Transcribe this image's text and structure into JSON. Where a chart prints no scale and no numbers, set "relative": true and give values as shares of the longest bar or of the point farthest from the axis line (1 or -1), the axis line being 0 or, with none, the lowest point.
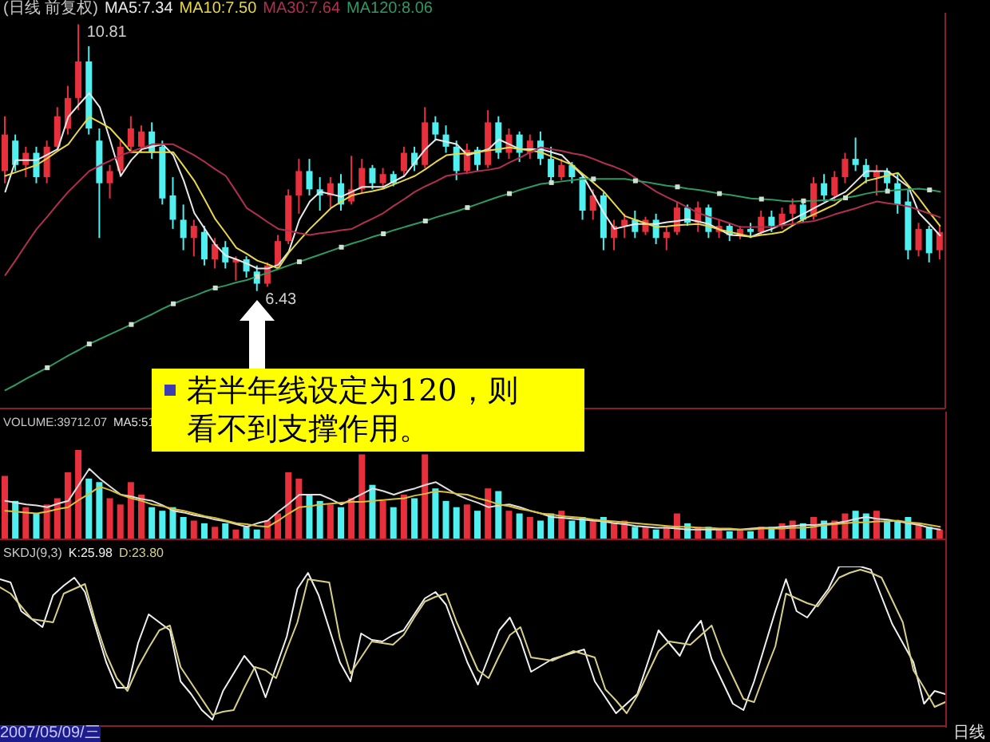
{
  "chart_data": [
    {
      "type": "candlestick",
      "title": "(日线 前复权)",
      "categories": [
        null,
        null,
        null,
        null,
        null,
        null,
        null,
        null,
        null,
        null,
        null,
        null,
        null,
        null,
        null,
        null,
        null,
        null,
        null,
        null,
        null,
        null,
        null,
        null,
        null,
        null,
        null,
        null,
        null,
        null,
        null,
        null,
        null,
        null,
        null,
        null,
        null,
        null,
        null,
        null,
        null,
        null,
        null,
        null,
        null,
        null,
        null,
        null,
        null,
        null,
        null,
        null,
        null,
        null,
        null,
        null,
        null,
        null,
        null,
        null,
        null,
        null,
        null,
        null,
        null,
        null,
        null,
        null,
        null,
        null,
        null,
        null,
        null,
        null,
        null,
        null,
        null,
        null,
        null,
        null,
        null,
        null,
        null,
        null,
        null,
        null,
        null,
        null,
        null,
        null
      ],
      "ylim": [
        4.5,
        11.0
      ],
      "ohlc": [
        [
          8.4,
          9.3,
          8.2,
          9.0
        ],
        [
          8.9,
          9.0,
          8.4,
          8.5
        ],
        [
          8.5,
          8.8,
          8.3,
          8.7
        ],
        [
          8.7,
          8.8,
          8.2,
          8.3
        ],
        [
          8.3,
          8.9,
          8.2,
          8.8
        ],
        [
          8.8,
          9.45,
          8.75,
          9.3
        ],
        [
          9.1,
          9.8,
          9.0,
          9.6
        ],
        [
          9.6,
          10.81,
          9.4,
          10.2
        ],
        [
          10.2,
          10.45,
          9.0,
          9.1
        ],
        [
          8.9,
          9.1,
          7.3,
          8.2
        ],
        [
          8.2,
          8.5,
          7.95,
          8.4
        ],
        [
          8.4,
          8.9,
          8.3,
          8.8
        ],
        [
          8.8,
          9.3,
          8.7,
          9.1
        ],
        [
          8.8,
          9.15,
          8.7,
          9.05
        ],
        [
          9.05,
          9.2,
          8.6,
          8.7
        ],
        [
          8.8,
          8.9,
          7.85,
          7.95
        ],
        [
          8.0,
          8.3,
          7.45,
          7.6
        ],
        [
          7.6,
          7.85,
          7.1,
          7.3
        ],
        [
          7.3,
          7.6,
          7.0,
          7.5
        ],
        [
          7.4,
          7.5,
          6.85,
          6.95
        ],
        [
          6.95,
          7.3,
          6.8,
          7.2
        ],
        [
          7.15,
          7.25,
          6.8,
          6.9
        ],
        [
          6.9,
          7.0,
          6.6,
          6.95
        ],
        [
          6.95,
          7.0,
          6.65,
          6.75
        ],
        [
          6.75,
          6.85,
          6.43,
          6.55
        ],
        [
          6.55,
          6.9,
          6.5,
          6.85
        ],
        [
          6.85,
          7.35,
          6.8,
          7.25
        ],
        [
          7.25,
          8.1,
          7.2,
          8.0
        ],
        [
          8.0,
          8.6,
          7.7,
          8.4
        ],
        [
          8.4,
          8.6,
          8.0,
          8.1
        ],
        [
          8.1,
          8.3,
          7.75,
          8.0
        ],
        [
          8.0,
          8.3,
          7.8,
          8.2
        ],
        [
          8.2,
          8.35,
          7.75,
          7.85
        ],
        [
          7.9,
          8.65,
          7.85,
          8.1
        ],
        [
          8.1,
          8.6,
          8.05,
          8.45
        ],
        [
          8.45,
          8.5,
          8.1,
          8.2
        ],
        [
          8.2,
          8.45,
          8.1,
          8.35
        ],
        [
          8.35,
          8.4,
          8.15,
          8.2
        ],
        [
          8.4,
          8.8,
          8.3,
          8.7
        ],
        [
          8.7,
          8.8,
          8.4,
          8.5
        ],
        [
          8.5,
          9.45,
          8.45,
          9.2
        ],
        [
          9.2,
          9.3,
          8.9,
          9.0
        ],
        [
          9.0,
          9.15,
          8.7,
          8.8
        ],
        [
          8.8,
          8.9,
          8.25,
          8.4
        ],
        [
          8.4,
          8.85,
          8.35,
          8.75
        ],
        [
          8.75,
          8.8,
          8.4,
          8.5
        ],
        [
          8.5,
          9.4,
          8.45,
          9.2
        ],
        [
          9.2,
          9.3,
          8.6,
          8.7
        ],
        [
          8.7,
          9.1,
          8.6,
          9.0
        ],
        [
          9.0,
          9.05,
          8.55,
          8.7
        ],
        [
          8.7,
          9.0,
          8.6,
          8.9
        ],
        [
          8.9,
          9.05,
          8.5,
          8.6
        ],
        [
          8.6,
          8.8,
          8.2,
          8.3
        ],
        [
          8.3,
          8.6,
          8.25,
          8.5
        ],
        [
          8.5,
          8.55,
          8.2,
          8.3
        ],
        [
          8.3,
          8.35,
          7.6,
          7.75
        ],
        [
          7.75,
          8.1,
          7.6,
          8.0
        ],
        [
          8.0,
          8.05,
          7.1,
          7.3
        ],
        [
          7.3,
          7.6,
          7.1,
          7.5
        ],
        [
          7.5,
          7.7,
          7.3,
          7.6
        ],
        [
          7.6,
          7.75,
          7.3,
          7.4
        ],
        [
          7.4,
          7.65,
          7.35,
          7.6
        ],
        [
          7.6,
          7.7,
          7.2,
          7.3
        ],
        [
          7.3,
          7.5,
          7.1,
          7.4
        ],
        [
          7.4,
          7.9,
          7.35,
          7.8
        ],
        [
          7.8,
          7.85,
          7.5,
          7.55
        ],
        [
          7.55,
          7.9,
          7.4,
          7.8
        ],
        [
          7.8,
          7.85,
          7.3,
          7.4
        ],
        [
          7.4,
          7.6,
          7.3,
          7.5
        ],
        [
          7.5,
          7.55,
          7.25,
          7.35
        ],
        [
          7.35,
          7.5,
          7.28,
          7.45
        ],
        [
          7.45,
          7.55,
          7.3,
          7.4
        ],
        [
          7.4,
          7.75,
          7.35,
          7.65
        ],
        [
          7.65,
          7.75,
          7.4,
          7.5
        ],
        [
          7.5,
          7.8,
          7.45,
          7.7
        ],
        [
          7.7,
          7.95,
          7.5,
          7.85
        ],
        [
          7.85,
          7.9,
          7.55,
          7.6
        ],
        [
          7.65,
          8.3,
          7.6,
          8.2
        ],
        [
          8.2,
          8.35,
          7.9,
          8.0
        ],
        [
          8.0,
          8.4,
          7.9,
          8.3
        ],
        [
          8.3,
          8.7,
          8.2,
          8.6
        ],
        [
          8.6,
          8.95,
          8.4,
          8.5
        ],
        [
          8.5,
          8.6,
          8.2,
          8.3
        ],
        [
          8.3,
          8.5,
          8.0,
          8.4
        ],
        [
          8.4,
          8.45,
          8.1,
          8.2
        ],
        [
          8.2,
          8.35,
          7.7,
          7.85
        ],
        [
          7.9,
          8.1,
          6.95,
          7.1
        ],
        [
          7.1,
          7.55,
          7.0,
          7.45
        ],
        [
          7.45,
          7.5,
          6.9,
          7.05
        ],
        [
          7.1,
          7.5,
          6.95,
          7.4
        ]
      ],
      "colors": [
        "#e8303c",
        "#50f0f0",
        "#e8303c",
        "#50f0f0",
        "#e8303c",
        "#e8303c",
        "#e8303c",
        "#e8303c",
        "#50f0f0",
        "#50f0f0",
        "#e8303c",
        "#e8303c",
        "#e8303c",
        "#e8303c",
        "#50f0f0",
        "#50f0f0",
        "#50f0f0",
        "#50f0f0",
        "#e8303c",
        "#50f0f0",
        "#e8303c",
        "#50f0f0",
        "#e8303c",
        "#50f0f0",
        "#50f0f0",
        "#e8303c",
        "#e8303c",
        "#e8303c",
        "#e8303c",
        "#50f0f0",
        "#50f0f0",
        "#e8303c",
        "#50f0f0",
        "#e8303c",
        "#e8303c",
        "#50f0f0",
        "#e8303c",
        "#50f0f0",
        "#e8303c",
        "#50f0f0",
        "#e8303c",
        "#50f0f0",
        "#50f0f0",
        "#50f0f0",
        "#e8303c",
        "#50f0f0",
        "#e8303c",
        "#50f0f0",
        "#e8303c",
        "#50f0f0",
        "#e8303c",
        "#50f0f0",
        "#50f0f0",
        "#e8303c",
        "#50f0f0",
        "#50f0f0",
        "#e8303c",
        "#50f0f0",
        "#e8303c",
        "#e8303c",
        "#50f0f0",
        "#e8303c",
        "#50f0f0",
        "#e8303c",
        "#e8303c",
        "#50f0f0",
        "#e8303c",
        "#50f0f0",
        "#e8303c",
        "#50f0f0",
        "#e8303c",
        "#50f0f0",
        "#e8303c",
        "#50f0f0",
        "#e8303c",
        "#e8303c",
        "#50f0f0",
        "#e8303c",
        "#50f0f0",
        "#e8303c",
        "#e8303c",
        "#50f0f0",
        "#50f0f0",
        "#e8303c",
        "#50f0f0",
        "#50f0f0",
        "#50f0f0",
        "#e8303c",
        "#50f0f0",
        "#e8303c"
      ],
      "value_labels": [
        null,
        null,
        null,
        null,
        null,
        null,
        null,
        "10.81",
        null,
        null,
        null,
        null,
        null,
        null,
        null,
        null,
        null,
        null,
        null,
        null,
        null,
        null,
        null,
        null,
        "6.43",
        null,
        null,
        null,
        null,
        null,
        null,
        null,
        null,
        null,
        null,
        null,
        null,
        null,
        null,
        null,
        null,
        null,
        null,
        null,
        null,
        null,
        null,
        null,
        null,
        null,
        null,
        null,
        null,
        null,
        null,
        null,
        null,
        null,
        null,
        null,
        null,
        null,
        null,
        null,
        null,
        null,
        null,
        null,
        null,
        null,
        null,
        null,
        null,
        null,
        null,
        null,
        null,
        null,
        null,
        null,
        null,
        null,
        null,
        null,
        null,
        null,
        null,
        null,
        null,
        null
      ],
      "series": [
        {
          "name": "MA5:7.34",
          "type": "line",
          "color": "#e8e8e8",
          "values": [
            8.06,
            8.58,
            8.58,
            8.58,
            8.67,
            8.76,
            9.29,
            9.49,
            9.68,
            9.45,
            8.9,
            8.32,
            8.58,
            8.76,
            8.8,
            8.84,
            8.66,
            8.24,
            7.71,
            7.45,
            7.19,
            7.01,
            6.95,
            6.88,
            6.8,
            6.8,
            6.86,
            7.08,
            7.6,
            7.9,
            8.06,
            8.02,
            7.98,
            8.06,
            8.14,
            8.14,
            8.14,
            8.23,
            8.32,
            8.54,
            8.76,
            8.92,
            8.88,
            8.84,
            8.66,
            8.71,
            8.76,
            8.92,
            8.84,
            8.76,
            8.76,
            8.76,
            8.71,
            8.66,
            8.49,
            8.32,
            8.02,
            7.71,
            7.45,
            7.49,
            7.53,
            7.53,
            7.53,
            7.56,
            7.58,
            7.61,
            7.57,
            7.53,
            7.44,
            7.35,
            7.34,
            7.32,
            7.39,
            7.45,
            7.53,
            7.61,
            7.7,
            7.79,
            7.88,
            7.97,
            8.06,
            8.23,
            8.4,
            8.4,
            8.4,
            8.27,
            8.14,
            7.71,
            7.53,
            7.34
          ]
        },
        {
          "name": "MA10:7.50",
          "type": "line",
          "color": "#e8d848",
          "values": [
            8.32,
            8.38,
            8.44,
            8.5,
            8.61,
            8.73,
            8.84,
            9.07,
            9.29,
            9.2,
            9.1,
            8.91,
            8.71,
            8.71,
            8.71,
            8.71,
            8.71,
            8.48,
            8.24,
            7.93,
            7.61,
            7.38,
            7.14,
            7.04,
            6.93,
            6.87,
            6.8,
            7.06,
            7.26,
            7.45,
            7.62,
            7.79,
            7.9,
            8.0,
            8.04,
            8.07,
            8.11,
            8.18,
            8.25,
            8.32,
            8.43,
            8.55,
            8.66,
            8.68,
            8.69,
            8.71,
            8.74,
            8.76,
            8.79,
            8.76,
            8.74,
            8.71,
            8.64,
            8.57,
            8.5,
            8.35,
            8.21,
            8.06,
            7.86,
            7.66,
            7.6,
            7.54,
            7.48,
            7.49,
            7.51,
            7.52,
            7.53,
            7.49,
            7.44,
            7.4,
            7.36,
            7.32,
            7.35,
            7.37,
            7.4,
            7.51,
            7.61,
            7.69,
            7.77,
            7.85,
            7.98,
            8.11,
            8.24,
            8.28,
            8.33,
            8.37,
            8.16,
            7.95,
            7.72,
            7.5
          ]
        },
        {
          "name": "MA30:7.64",
          "type": "line",
          "color": "#b03050",
          "values": [
            6.69,
            6.94,
            7.2,
            7.45,
            7.65,
            7.86,
            8.06,
            8.23,
            8.4,
            8.49,
            8.57,
            8.66,
            8.72,
            8.78,
            8.84,
            8.84,
            8.84,
            8.75,
            8.66,
            8.55,
            8.43,
            8.32,
            8.06,
            7.79,
            7.68,
            7.56,
            7.45,
            7.42,
            7.38,
            7.35,
            7.38,
            7.4,
            7.43,
            7.45,
            7.54,
            7.62,
            7.71,
            7.83,
            7.94,
            8.06,
            8.15,
            8.23,
            8.32,
            8.35,
            8.37,
            8.4,
            8.42,
            8.45,
            8.54,
            8.62,
            8.71,
            8.79,
            8.76,
            8.73,
            8.69,
            8.66,
            8.6,
            8.53,
            8.47,
            8.4,
            8.29,
            8.17,
            8.06,
            7.97,
            7.89,
            7.8,
            7.71,
            7.65,
            7.6,
            7.54,
            7.48,
            7.48,
            7.48,
            7.48,
            7.51,
            7.53,
            7.56,
            7.58,
            7.63,
            7.69,
            7.74,
            7.79,
            7.85,
            7.9,
            7.87,
            7.85,
            7.82,
            7.76,
            7.7,
            7.64
          ]
        },
        {
          "name": "MA120:8.06",
          "type": "line",
          "color": "#2e9a62",
          "values": [
            4.8,
            4.89,
            4.99,
            5.08,
            5.17,
            5.27,
            5.37,
            5.46,
            5.56,
            5.64,
            5.72,
            5.8,
            5.88,
            5.97,
            6.05,
            6.14,
            6.22,
            6.29,
            6.35,
            6.42,
            6.48,
            6.52,
            6.57,
            6.61,
            6.67,
            6.73,
            6.79,
            6.85,
            6.91,
            6.97,
            7.03,
            7.09,
            7.15,
            7.21,
            7.26,
            7.32,
            7.37,
            7.43,
            7.48,
            7.53,
            7.58,
            7.64,
            7.69,
            7.74,
            7.8,
            7.86,
            7.92,
            7.98,
            8.03,
            8.09,
            8.14,
            8.19,
            8.21,
            8.23,
            8.25,
            8.27,
            8.27,
            8.27,
            8.27,
            8.27,
            8.24,
            8.22,
            8.19,
            8.16,
            8.14,
            8.11,
            8.09,
            8.06,
            8.03,
            8.01,
            7.98,
            7.95,
            7.94,
            7.93,
            7.91,
            7.9,
            7.91,
            7.91,
            7.92,
            7.92,
            7.96,
            7.99,
            8.03,
            8.06,
            8.07,
            8.09,
            8.1,
            8.11,
            8.09,
            8.06
          ]
        },
        {
          "type": "scatter",
          "color": "#d0e0d0",
          "marker": "square",
          "values": [
            null,
            null,
            null,
            null,
            5.17,
            null,
            null,
            null,
            5.56,
            null,
            null,
            null,
            5.88,
            null,
            null,
            null,
            6.22,
            null,
            null,
            null,
            6.48,
            null,
            null,
            null,
            6.67,
            null,
            null,
            null,
            6.91,
            null,
            null,
            null,
            7.15,
            null,
            null,
            null,
            7.37,
            null,
            null,
            null,
            7.58,
            null,
            null,
            null,
            7.8,
            null,
            null,
            null,
            8.03,
            null,
            null,
            null,
            8.21,
            null,
            null,
            null,
            8.27,
            null,
            null,
            null,
            8.24,
            null,
            null,
            null,
            8.14,
            null,
            null,
            null,
            8.03,
            null,
            null,
            null,
            7.94,
            null,
            null,
            null,
            7.91,
            null,
            null,
            null,
            7.96,
            null,
            null,
            null,
            8.07,
            null,
            null,
            null,
            8.09,
            null
          ]
        }
      ],
      "annotations": [
        "若半年线设定为120，则看不到支撑作用。"
      ]
    },
    {
      "type": "bar",
      "title": "VOLUME:39712.07",
      "relative": true,
      "categories": [
        null,
        null,
        null,
        null,
        null,
        null,
        null,
        null,
        null,
        null,
        null,
        null,
        null,
        null,
        null,
        null,
        null,
        null,
        null,
        null,
        null,
        null,
        null,
        null,
        null,
        null,
        null,
        null,
        null,
        null,
        null,
        null,
        null,
        null,
        null,
        null,
        null,
        null,
        null,
        null,
        null,
        null,
        null,
        null,
        null,
        null,
        null,
        null,
        null,
        null,
        null,
        null,
        null,
        null,
        null,
        null,
        null,
        null,
        null,
        null,
        null,
        null,
        null,
        null,
        null,
        null,
        null,
        null,
        null,
        null,
        null,
        null,
        null,
        null,
        null,
        null,
        null,
        null,
        null,
        null,
        null,
        null,
        null,
        null,
        null,
        null,
        null,
        null,
        null,
        null
      ],
      "series": [
        {
          "type": "bar",
          "values": [
            0.71,
            0.43,
            0.36,
            0.29,
            0.39,
            0.46,
            0.75,
            1.0,
            0.68,
            0.64,
            0.46,
            0.39,
            0.64,
            0.5,
            0.36,
            0.32,
            0.36,
            0.25,
            0.21,
            0.18,
            0.14,
            0.18,
            0.11,
            0.14,
            0.11,
            0.21,
            0.29,
            0.75,
            0.68,
            0.5,
            0.43,
            0.39,
            0.36,
            0.46,
            0.95,
            0.61,
            0.43,
            0.36,
            0.5,
            0.46,
            0.95,
            0.57,
            0.43,
            0.36,
            0.39,
            0.32,
            0.57,
            0.54,
            0.32,
            0.29,
            0.25,
            0.21,
            0.29,
            0.32,
            0.21,
            0.25,
            0.21,
            0.25,
            0.18,
            0.21,
            0.14,
            0.14,
            0.11,
            0.14,
            0.29,
            0.18,
            0.14,
            0.14,
            0.11,
            0.09,
            0.11,
            0.09,
            0.14,
            0.14,
            0.18,
            0.21,
            0.18,
            0.25,
            0.21,
            0.21,
            0.29,
            0.32,
            0.29,
            0.32,
            0.21,
            0.21,
            0.25,
            0.18,
            0.14,
            0.11
          ],
          "colors": [
            "#e8303c",
            "#50f0f0",
            "#e8303c",
            "#50f0f0",
            "#e8303c",
            "#e8303c",
            "#e8303c",
            "#e8303c",
            "#50f0f0",
            "#50f0f0",
            "#e8303c",
            "#e8303c",
            "#e8303c",
            "#e8303c",
            "#50f0f0",
            "#50f0f0",
            "#50f0f0",
            "#50f0f0",
            "#e8303c",
            "#50f0f0",
            "#e8303c",
            "#50f0f0",
            "#e8303c",
            "#50f0f0",
            "#50f0f0",
            "#e8303c",
            "#e8303c",
            "#e8303c",
            "#e8303c",
            "#50f0f0",
            "#50f0f0",
            "#e8303c",
            "#50f0f0",
            "#e8303c",
            "#e8303c",
            "#50f0f0",
            "#e8303c",
            "#50f0f0",
            "#e8303c",
            "#50f0f0",
            "#e8303c",
            "#50f0f0",
            "#50f0f0",
            "#50f0f0",
            "#e8303c",
            "#50f0f0",
            "#e8303c",
            "#50f0f0",
            "#e8303c",
            "#50f0f0",
            "#e8303c",
            "#50f0f0",
            "#50f0f0",
            "#e8303c",
            "#50f0f0",
            "#50f0f0",
            "#e8303c",
            "#50f0f0",
            "#e8303c",
            "#e8303c",
            "#50f0f0",
            "#e8303c",
            "#50f0f0",
            "#e8303c",
            "#e8303c",
            "#50f0f0",
            "#e8303c",
            "#50f0f0",
            "#e8303c",
            "#50f0f0",
            "#e8303c",
            "#50f0f0",
            "#e8303c",
            "#50f0f0",
            "#e8303c",
            "#e8303c",
            "#50f0f0",
            "#e8303c",
            "#50f0f0",
            "#e8303c",
            "#e8303c",
            "#50f0f0",
            "#50f0f0",
            "#e8303c",
            "#50f0f0",
            "#50f0f0",
            "#50f0f0",
            "#e8303c",
            "#50f0f0",
            "#e8303c"
          ]
        },
        {
          "name": "MA5:51",
          "type": "line",
          "color": "#e0e0e0",
          "values": [
            0.43,
            0.41,
            0.39,
            0.38,
            0.36,
            0.4,
            0.43,
            0.61,
            0.79,
            0.68,
            0.59,
            0.5,
            0.48,
            0.45,
            0.43,
            0.38,
            0.32,
            0.3,
            0.27,
            0.25,
            0.22,
            0.2,
            0.17,
            0.14,
            0.18,
            0.21,
            0.31,
            0.4,
            0.5,
            0.5,
            0.5,
            0.45,
            0.39,
            0.45,
            0.51,
            0.57,
            0.54,
            0.5,
            0.54,
            0.57,
            0.61,
            0.64,
            0.57,
            0.5,
            0.45,
            0.41,
            0.36,
            0.38,
            0.39,
            0.36,
            0.32,
            0.29,
            0.25,
            0.24,
            0.23,
            0.22,
            0.21,
            0.2,
            0.18,
            0.17,
            0.15,
            0.14,
            0.13,
            0.13,
            0.12,
            0.11,
            0.11,
            0.11,
            0.11,
            0.11,
            0.11,
            0.12,
            0.13,
            0.13,
            0.14,
            0.15,
            0.16,
            0.16,
            0.17,
            0.18,
            0.2,
            0.23,
            0.25,
            0.23,
            0.22,
            0.2,
            0.18,
            0.16,
            0.13,
            0.11
          ]
        },
        {
          "type": "line",
          "color": "#d8c040",
          "values": [
            0.32,
            0.31,
            0.3,
            0.29,
            0.31,
            0.34,
            0.36,
            0.44,
            0.51,
            0.59,
            0.55,
            0.5,
            0.46,
            0.43,
            0.39,
            0.37,
            0.34,
            0.32,
            0.29,
            0.26,
            0.24,
            0.21,
            0.18,
            0.17,
            0.15,
            0.14,
            0.21,
            0.29,
            0.36,
            0.37,
            0.39,
            0.4,
            0.41,
            0.42,
            0.42,
            0.43,
            0.44,
            0.45,
            0.46,
            0.49,
            0.51,
            0.54,
            0.53,
            0.51,
            0.5,
            0.46,
            0.43,
            0.39,
            0.37,
            0.34,
            0.32,
            0.29,
            0.28,
            0.26,
            0.25,
            0.24,
            0.22,
            0.21,
            0.2,
            0.19,
            0.18,
            0.17,
            0.16,
            0.15,
            0.14,
            0.14,
            0.13,
            0.13,
            0.12,
            0.12,
            0.11,
            0.11,
            0.12,
            0.12,
            0.12,
            0.13,
            0.13,
            0.14,
            0.16,
            0.17,
            0.18,
            0.19,
            0.19,
            0.2,
            0.2,
            0.21,
            0.19,
            0.18,
            0.16,
            0.14
          ]
        }
      ]
    },
    {
      "type": "line",
      "title": "SKDJ(9,3)",
      "relative": true,
      "categories": [
        null,
        null,
        null,
        null,
        null,
        null,
        null,
        null,
        null,
        null,
        null,
        null,
        null,
        null,
        null,
        null,
        null,
        null,
        null,
        null,
        null,
        null,
        null,
        null,
        null,
        null,
        null,
        null,
        null,
        null,
        null,
        null,
        null,
        null,
        null,
        null,
        null,
        null,
        null,
        null,
        null,
        null,
        null,
        null,
        null,
        null,
        null,
        null,
        null,
        null,
        null,
        null,
        null,
        null,
        null,
        null,
        null,
        null,
        null,
        null,
        null,
        null,
        null,
        null,
        null,
        null,
        null,
        null,
        null,
        null,
        null,
        null,
        null,
        null,
        null,
        null,
        null,
        null,
        null,
        null,
        null,
        null,
        null,
        null,
        null,
        null,
        null,
        null,
        null,
        null
      ],
      "series": [
        {
          "name": "K:25.98",
          "color": "#f0f0f0",
          "values": [
            0.92,
            0.9,
            0.72,
            0.67,
            0.62,
            0.82,
            0.88,
            0.93,
            0.84,
            0.62,
            0.4,
            0.24,
            0.24,
            0.52,
            0.7,
            0.65,
            0.6,
            0.28,
            0.2,
            0.1,
            0.04,
            0.22,
            0.33,
            0.44,
            0.36,
            0.18,
            0.37,
            0.56,
            0.86,
            0.96,
            0.82,
            0.61,
            0.4,
            0.28,
            0.58,
            0.54,
            0.53,
            0.57,
            0.6,
            0.7,
            0.8,
            0.84,
            0.76,
            0.58,
            0.4,
            0.26,
            0.43,
            0.6,
            0.68,
            0.54,
            0.34,
            0.38,
            0.42,
            0.44,
            0.46,
            0.48,
            0.28,
            0.18,
            0.08,
            0.14,
            0.2,
            0.4,
            0.6,
            0.52,
            0.44,
            0.58,
            0.66,
            0.42,
            0.28,
            0.14,
            0.1,
            0.28,
            0.5,
            0.72,
            0.92,
            0.72,
            0.68,
            0.77,
            0.86,
            1.0,
            1.0,
            1.0,
            0.98,
            0.81,
            0.64,
            0.52,
            0.4,
            0.14,
            0.22,
            0.2
          ]
        },
        {
          "name": "D:23.80",
          "color": "#d8d088",
          "values": [
            0.87,
            0.83,
            0.75,
            0.67,
            0.66,
            0.65,
            0.83,
            0.86,
            0.89,
            0.65,
            0.45,
            0.3,
            0.22,
            0.37,
            0.49,
            0.6,
            0.63,
            0.37,
            0.27,
            0.17,
            0.07,
            0.09,
            0.1,
            0.24,
            0.37,
            0.35,
            0.3,
            0.48,
            0.65,
            0.92,
            0.91,
            0.9,
            0.55,
            0.33,
            0.43,
            0.53,
            0.52,
            0.51,
            0.57,
            0.68,
            0.78,
            0.81,
            0.83,
            0.65,
            0.5,
            0.35,
            0.3,
            0.44,
            0.57,
            0.62,
            0.43,
            0.42,
            0.41,
            0.44,
            0.47,
            0.45,
            0.43,
            0.23,
            0.16,
            0.08,
            0.19,
            0.33,
            0.47,
            0.53,
            0.52,
            0.51,
            0.57,
            0.63,
            0.45,
            0.31,
            0.17,
            0.15,
            0.33,
            0.5,
            0.83,
            0.8,
            0.77,
            0.75,
            0.84,
            0.93,
            0.96,
            0.98,
            0.96,
            0.93,
            0.79,
            0.65,
            0.35,
            0.24,
            0.12,
            0.15
          ]
        }
      ],
      "annotations": [
        "2007/05/09/三",
        "日线"
      ]
    }
  ]
}
